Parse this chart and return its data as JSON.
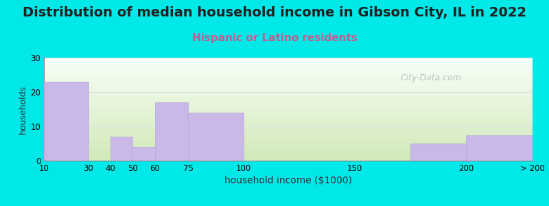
{
  "title": "Distribution of median household income in Gibson City, IL in 2022",
  "subtitle": "Hispanic or Latino residents",
  "xlabel": "household income ($1000)",
  "ylabel": "households",
  "tick_labels": [
    "10",
    "30",
    "40",
    "50",
    "60",
    "75",
    "100",
    "150",
    "200",
    "> 200"
  ],
  "tick_positions": [
    10,
    30,
    40,
    50,
    60,
    75,
    100,
    150,
    200,
    230
  ],
  "bar_left": [
    10,
    40,
    50,
    60,
    75,
    100,
    175,
    200
  ],
  "bar_right": [
    30,
    50,
    60,
    75,
    100,
    125,
    200,
    230
  ],
  "bar_values": [
    23,
    7,
    4,
    17,
    14,
    0,
    5,
    7.5
  ],
  "bar_color": "#c9b8e8",
  "bar_edgecolor": "#b8a8d8",
  "ylim": [
    0,
    30
  ],
  "yticks": [
    0,
    10,
    20,
    30
  ],
  "xlim": [
    10,
    230
  ],
  "title_fontsize": 14,
  "subtitle_fontsize": 11,
  "subtitle_color": "#c06090",
  "xlabel_fontsize": 10,
  "ylabel_fontsize": 9,
  "background_color_fig": "#00e8e8",
  "grad_top": "#f8fff8",
  "grad_bot": "#d0e8b8",
  "grid_color": "#e0e0e0",
  "watermark_text": "City-Data.com",
  "watermark_color": "#b0b8b0"
}
